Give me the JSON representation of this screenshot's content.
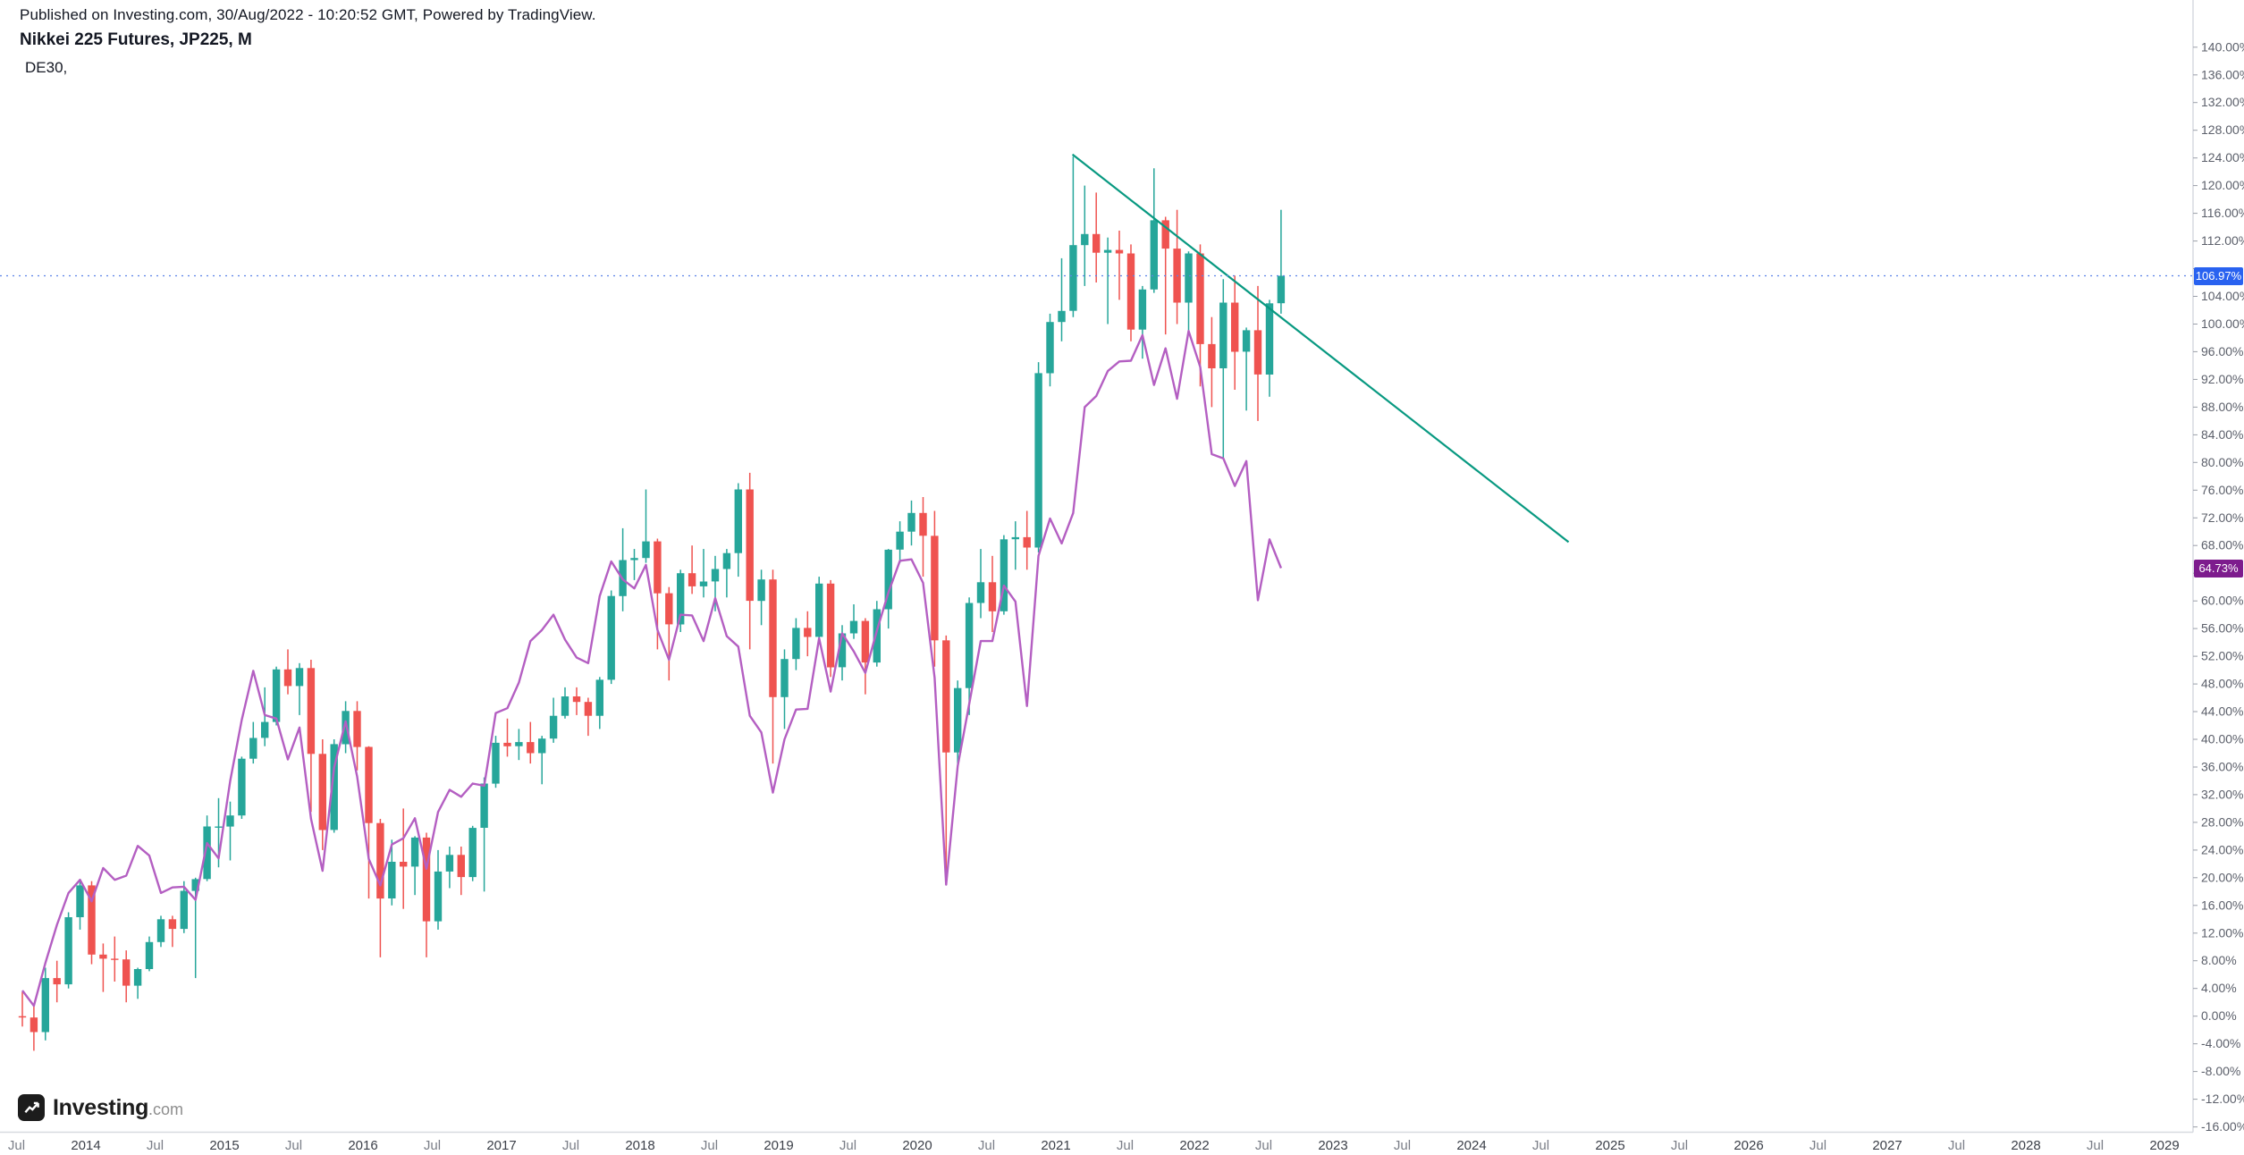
{
  "header": {
    "published_line": "Published on Investing.com, 30/Aug/2022 - 10:20:52 GMT, Powered by TradingView.",
    "symbol_title": "Nikkei 225 Futures, JP225, M",
    "compare_label": "DE30,"
  },
  "logo": {
    "brand": "Investing",
    "tld": ".com"
  },
  "price_labels": {
    "main": {
      "text": "106.97%",
      "value": 106.97,
      "color": "#2962f0"
    },
    "compare": {
      "text": "64.73%",
      "value": 64.73,
      "color": "#7d1c8d"
    }
  },
  "chart_data": {
    "type": "candlestick+line",
    "title": "Nikkei 225 Futures, JP225, M",
    "unit": "percent_change",
    "interval": "1M",
    "start_month": "2013-07",
    "y_axis": {
      "min": -16,
      "max": 140,
      "step": 4,
      "suffix": "%"
    },
    "x_axis": {
      "years": [
        2014,
        2015,
        2016,
        2017,
        2018,
        2019,
        2020,
        2021,
        2022,
        2023,
        2024,
        2025,
        2026,
        2027,
        2028,
        2029
      ],
      "mid_label": "Jul"
    },
    "colors": {
      "up": "#26a69a",
      "down": "#ef5350",
      "compare": "#b45fc2",
      "trendline": "#089981",
      "price_line": "#5b82e8"
    },
    "candles": [
      [
        0,
        3.5,
        -1.5,
        -0.2
      ],
      [
        -0.2,
        1.5,
        -5,
        -2.3
      ],
      [
        -2.3,
        7,
        -3.5,
        5.5
      ],
      [
        5.5,
        8,
        2,
        4.6
      ],
      [
        4.6,
        15,
        4,
        14.3
      ],
      [
        14.3,
        19.5,
        12.5,
        18.9
      ],
      [
        18.9,
        19.5,
        7.5,
        8.9
      ],
      [
        8.9,
        10.5,
        3.5,
        8.3
      ],
      [
        8.3,
        11.5,
        5,
        8.2
      ],
      [
        8.2,
        9.5,
        2,
        4.4
      ],
      [
        4.4,
        7,
        2.5,
        6.8
      ],
      [
        6.8,
        11.5,
        6.5,
        10.7
      ],
      [
        10.7,
        14.5,
        10,
        14
      ],
      [
        14,
        14.5,
        10,
        12.6
      ],
      [
        12.6,
        19.5,
        12,
        18.1
      ],
      [
        18.1,
        20,
        5.5,
        19.8
      ],
      [
        19.8,
        29,
        19.5,
        27.4
      ],
      [
        27.4,
        31.5,
        21.5,
        27.4
      ],
      [
        27.4,
        31,
        22.5,
        29
      ],
      [
        29,
        37.5,
        28.5,
        37.2
      ],
      [
        37.2,
        42.5,
        36.5,
        40.2
      ],
      [
        40.2,
        47.5,
        39,
        42.5
      ],
      [
        42.5,
        50.5,
        42,
        50.1
      ],
      [
        50.1,
        53,
        46.5,
        47.7
      ],
      [
        47.7,
        51,
        43.5,
        50.3
      ],
      [
        50.3,
        51.5,
        29.5,
        37.9
      ],
      [
        37.9,
        40,
        24,
        26.9
      ],
      [
        26.9,
        40,
        26.5,
        39.3
      ],
      [
        39.3,
        45.5,
        38,
        44.1
      ],
      [
        44.1,
        45.5,
        35.5,
        38.9
      ],
      [
        38.9,
        39,
        17,
        27.9
      ],
      [
        27.9,
        28.5,
        8.5,
        17
      ],
      [
        17,
        25.5,
        16,
        22.3
      ],
      [
        22.3,
        30,
        15.5,
        21.6
      ],
      [
        21.6,
        26,
        17.5,
        25.8
      ],
      [
        25.8,
        26.5,
        8.5,
        13.7
      ],
      [
        13.7,
        24,
        12.5,
        20.9
      ],
      [
        20.9,
        24.5,
        18.5,
        23.3
      ],
      [
        23.3,
        24.5,
        17.5,
        20.1
      ],
      [
        20.1,
        27.5,
        19.5,
        27.2
      ],
      [
        27.2,
        34.5,
        18,
        33.6
      ],
      [
        33.6,
        40.5,
        33,
        39.5
      ],
      [
        39.5,
        43,
        37.5,
        39
      ],
      [
        39,
        41.5,
        37,
        39.6
      ],
      [
        39.6,
        42.5,
        36.5,
        38
      ],
      [
        38,
        40.5,
        33.5,
        40.1
      ],
      [
        40.1,
        46,
        39.5,
        43.4
      ],
      [
        43.4,
        47.5,
        43,
        46.2
      ],
      [
        46.2,
        47.5,
        43.5,
        45.4
      ],
      [
        45.4,
        46,
        40.5,
        43.4
      ],
      [
        43.4,
        49,
        41.5,
        48.6
      ],
      [
        48.6,
        61.5,
        48,
        60.7
      ],
      [
        60.7,
        70.5,
        58.5,
        65.9
      ],
      [
        65.9,
        67.5,
        63,
        66.2
      ],
      [
        66.2,
        76.1,
        65.5,
        68.6
      ],
      [
        68.6,
        69,
        53,
        61.1
      ],
      [
        61.1,
        62,
        48.5,
        56.6
      ],
      [
        56.6,
        64.5,
        55.5,
        64
      ],
      [
        64,
        68,
        61,
        62.1
      ],
      [
        62.1,
        67.5,
        60.5,
        62.8
      ],
      [
        62.8,
        66.5,
        58.5,
        64.6
      ],
      [
        64.6,
        67.5,
        60.5,
        66.9
      ],
      [
        66.9,
        77,
        63.5,
        76.1
      ],
      [
        76.1,
        78.5,
        53,
        60
      ],
      [
        60,
        64.5,
        56.5,
        63.1
      ],
      [
        63.1,
        64.5,
        36.5,
        46.1
      ],
      [
        46.1,
        53,
        41.5,
        51.6
      ],
      [
        51.6,
        57.5,
        50,
        56.1
      ],
      [
        56.1,
        58.5,
        52,
        54.8
      ],
      [
        54.8,
        63.5,
        54.5,
        62.5
      ],
      [
        62.5,
        63,
        49,
        50.4
      ],
      [
        50.4,
        56.5,
        48.5,
        55.3
      ],
      [
        55.3,
        59.5,
        54.5,
        57.1
      ],
      [
        57.1,
        57.5,
        46.5,
        51.1
      ],
      [
        51.1,
        60,
        50.5,
        58.8
      ],
      [
        58.8,
        67.5,
        56,
        67.4
      ],
      [
        67.4,
        71.5,
        65.5,
        70
      ],
      [
        70,
        74.5,
        68,
        72.7
      ],
      [
        72.7,
        75,
        63.5,
        69.4
      ],
      [
        69.4,
        73,
        50.5,
        54.3
      ],
      [
        54.3,
        55,
        19.5,
        38.1
      ],
      [
        38.1,
        48.5,
        36,
        47.4
      ],
      [
        47.4,
        60.5,
        43.5,
        59.7
      ],
      [
        59.7,
        67.5,
        57.5,
        62.7
      ],
      [
        62.7,
        66.5,
        55.5,
        58.5
      ],
      [
        58.5,
        69.5,
        58,
        68.9
      ],
      [
        68.9,
        71.5,
        64.5,
        69.2
      ],
      [
        69.2,
        73,
        64.5,
        67.7
      ],
      [
        67.7,
        94.5,
        67,
        92.9
      ],
      [
        92.9,
        101.5,
        91,
        100.3
      ],
      [
        100.3,
        109.5,
        97.5,
        101.9
      ],
      [
        101.9,
        124.2,
        101,
        111.4
      ],
      [
        111.4,
        120,
        105.5,
        113
      ],
      [
        113,
        119,
        106,
        110.3
      ],
      [
        110.3,
        112.5,
        100,
        110.7
      ],
      [
        110.7,
        113.5,
        103.5,
        110.2
      ],
      [
        110.2,
        111.5,
        97.5,
        99.2
      ],
      [
        99.2,
        105.5,
        95,
        105
      ],
      [
        105,
        122.5,
        104.5,
        115
      ],
      [
        115,
        115.5,
        98.5,
        110.9
      ],
      [
        110.9,
        116.5,
        100,
        103.1
      ],
      [
        103.1,
        110.5,
        98.5,
        110.2
      ],
      [
        110.2,
        111.5,
        91,
        97.1
      ],
      [
        97.1,
        101,
        88,
        93.6
      ],
      [
        93.6,
        106.5,
        80.5,
        103.1
      ],
      [
        103.1,
        107,
        90.5,
        96
      ],
      [
        96,
        99.5,
        87.5,
        99.1
      ],
      [
        99.1,
        105.5,
        86,
        92.7
      ],
      [
        92.7,
        103.5,
        89.5,
        103
      ],
      [
        103,
        116.5,
        101.5,
        106.97
      ]
    ],
    "compare": {
      "name": "DE30",
      "values": [
        3.7,
        1.5,
        7.7,
        13.2,
        17.8,
        19.7,
        16.6,
        21.4,
        19.7,
        20.3,
        24.6,
        23.2,
        17.8,
        18.6,
        18.7,
        16.8,
        25.0,
        22.8,
        34.0,
        42.8,
        49.9,
        43.5,
        43.0,
        37.1,
        41.7,
        28.5,
        21.0,
        35.9,
        42.6,
        34.6,
        22.7,
        18.9,
        24.8,
        25.7,
        28.6,
        21.3,
        29.5,
        32.7,
        31.7,
        33.6,
        33.3,
        43.8,
        44.5,
        48.2,
        54.2,
        55.8,
        58.0,
        54.4,
        51.8,
        51.0,
        60.7,
        65.7,
        63.1,
        61.8,
        65.2,
        55.8,
        51.5,
        58.0,
        57.9,
        54.2,
        60.4,
        54.9,
        53.4,
        43.4,
        41.0,
        32.3,
        40.0,
        44.3,
        44.4,
        54.6,
        46.9,
        55.3,
        52.7,
        49.6,
        55.7,
        61.2,
        65.8,
        66.0,
        62.6,
        48.9,
        19.0,
        36.1,
        45.1,
        54.2,
        54.2,
        62.2,
        59.9,
        44.8,
        66.5,
        71.9,
        68.3,
        72.7,
        88.0,
        89.6,
        93.2,
        94.6,
        94.7,
        98.4,
        91.2,
        96.5,
        89.2,
        99.0,
        93.8,
        81.2,
        80.6,
        76.6,
        80.2,
        60.1,
        68.9,
        64.73
      ]
    },
    "trendline": {
      "from": {
        "t": 2021.12,
        "v": 124.5
      },
      "to": {
        "t": 2024.7,
        "v": 68.5
      }
    }
  }
}
